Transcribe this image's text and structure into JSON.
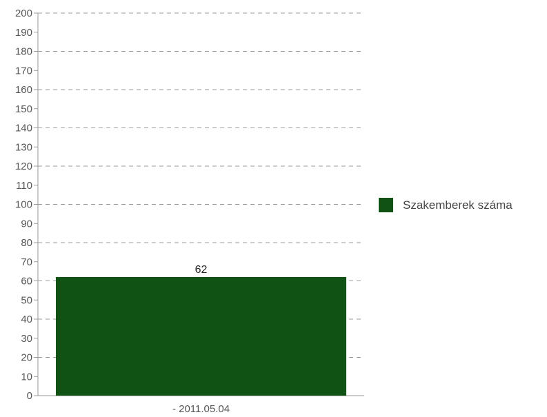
{
  "chart_data": {
    "type": "bar",
    "categories": [
      "- 2011.05.04"
    ],
    "series": [
      {
        "name": "Szakemberek száma",
        "values": [
          62
        ],
        "color": "#0f5213"
      }
    ],
    "ylim": [
      0,
      200
    ],
    "yticks": [
      0,
      10,
      20,
      30,
      40,
      50,
      60,
      70,
      80,
      90,
      100,
      110,
      120,
      130,
      140,
      150,
      160,
      170,
      180,
      190,
      200
    ],
    "gridlines": [
      0,
      20,
      40,
      60,
      80,
      100,
      120,
      140,
      160,
      180,
      200
    ],
    "grid": true,
    "grid_style": "dashed",
    "data_labels": true,
    "legend_position": "right"
  }
}
